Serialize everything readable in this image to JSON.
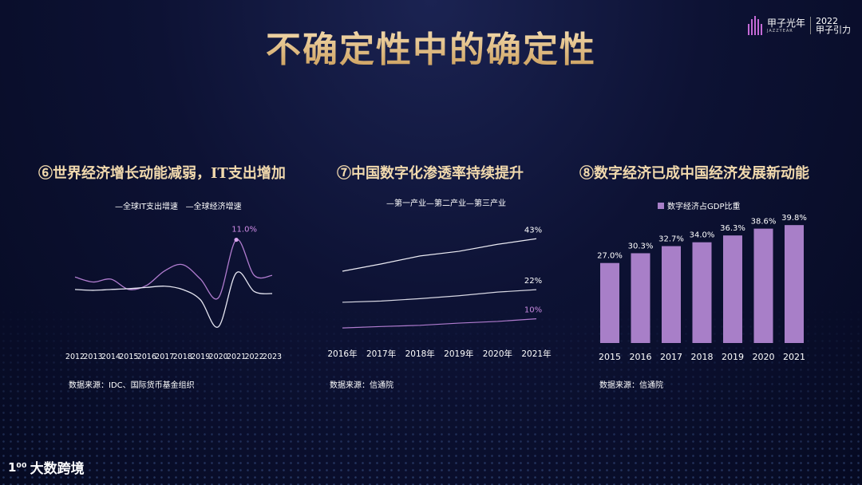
{
  "title": "不确定性中的确定性",
  "logo": {
    "name": "甲子光年",
    "sub": "JAZZYEAR",
    "year": "2022",
    "event": "甲子引力"
  },
  "brand": {
    "mark": "1⁰⁰",
    "name": "大数跨境"
  },
  "colors": {
    "accent": "#b07ccf",
    "line_white": "#e6e6f2",
    "gold": "#e9c98f"
  },
  "panels": [
    {
      "title": "⑥世界经济增长动能减弱，IT支出增加",
      "source": "数据来源：IDC、国际货币基金组织"
    },
    {
      "title": "⑦中国数字化渗透率持续提升",
      "source": "数据来源：信通院"
    },
    {
      "title": "⑧数字经济已成中国经济发展新动能",
      "source": "数据来源：信通院"
    }
  ],
  "chart_data": [
    {
      "type": "line",
      "x": [
        "2012",
        "2013",
        "2014",
        "2015",
        "2016",
        "2017",
        "2018",
        "2019",
        "2020",
        "2021",
        "2022",
        "2023"
      ],
      "series": [
        {
          "name": "全球IT支出增速",
          "values": [
            2.0,
            0.8,
            1.5,
            -1.0,
            0.0,
            3.5,
            5.0,
            1.5,
            -3.0,
            11.0,
            2.4,
            2.4
          ]
        },
        {
          "name": "全球经济增速",
          "values": [
            -1.0,
            -1.2,
            -1.0,
            -0.8,
            -0.5,
            -0.2,
            -1.0,
            -3.5,
            -10.0,
            3.0,
            -1.5,
            -2.0
          ]
        }
      ],
      "annotations": [
        {
          "label": "11.0%",
          "x": "2021",
          "y": 11.0
        }
      ],
      "ylim": [
        -12,
        14
      ]
    },
    {
      "type": "line",
      "x": [
        "2016年",
        "2017年",
        "2018年",
        "2019年",
        "2020年",
        "2021年"
      ],
      "series": [
        {
          "name": "第一产业",
          "values": [
            6.2,
            6.8,
            7.3,
            8.2,
            8.9,
            10
          ]
        },
        {
          "name": "第二产业",
          "values": [
            16.8,
            17.3,
            18.3,
            19.5,
            21.0,
            22
          ]
        },
        {
          "name": "第三产业",
          "values": [
            29.6,
            32.6,
            35.9,
            37.8,
            40.7,
            43
          ]
        }
      ],
      "end_labels": [
        "10%",
        "22%",
        "43%"
      ],
      "ylim": [
        0,
        50
      ]
    },
    {
      "type": "bar",
      "categories": [
        "2015",
        "2016",
        "2017",
        "2018",
        "2019",
        "2020",
        "2021"
      ],
      "series": [
        {
          "name": "数字经济占GDP比重",
          "values": [
            27.0,
            30.3,
            32.7,
            34.0,
            36.3,
            38.6,
            39.8
          ]
        }
      ],
      "value_labels": [
        "27.0%",
        "30.3%",
        "32.7%",
        "34.0%",
        "36.3%",
        "38.6%",
        "39.8%"
      ],
      "ylim": [
        0,
        42
      ]
    }
  ]
}
